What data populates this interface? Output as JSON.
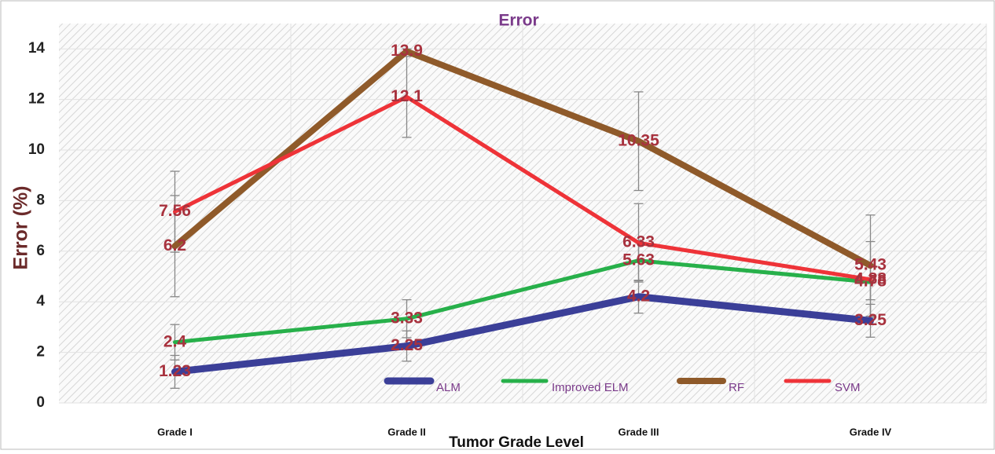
{
  "chart_data": {
    "type": "line",
    "title": "Error",
    "y_label": "Error  (%)",
    "x_label": "Tumor Grade Level",
    "categories": [
      "Grade I",
      "Grade II",
      "Grade III",
      "Grade IV"
    ],
    "series": [
      {
        "name": "ALM",
        "color": "#3b3f98",
        "values": [
          1.23,
          2.25,
          4.2,
          3.25
        ],
        "errors": [
          0.65,
          0.6,
          0.65,
          0.65
        ]
      },
      {
        "name": "Improved ELM",
        "color": "#27b04a",
        "values": [
          2.4,
          3.33,
          5.63,
          4.78
        ],
        "errors": [
          0.7,
          0.75,
          0.8,
          0.7
        ]
      },
      {
        "name": "RF",
        "color": "#8f5a2a",
        "values": [
          6.2,
          13.9,
          10.35,
          5.43
        ],
        "errors": [
          2,
          0.1,
          1.95,
          2
        ]
      },
      {
        "name": "SVM",
        "color": "#ee3338",
        "values": [
          7.56,
          12.1,
          6.33,
          4.88
        ],
        "errors": [
          1.6,
          1.6,
          1.55,
          1.5
        ]
      }
    ],
    "ylim": [
      0,
      15
    ],
    "yticks": [
      0,
      2,
      4,
      6,
      8,
      10,
      12,
      14
    ],
    "grid": true,
    "legend": "bottom"
  }
}
